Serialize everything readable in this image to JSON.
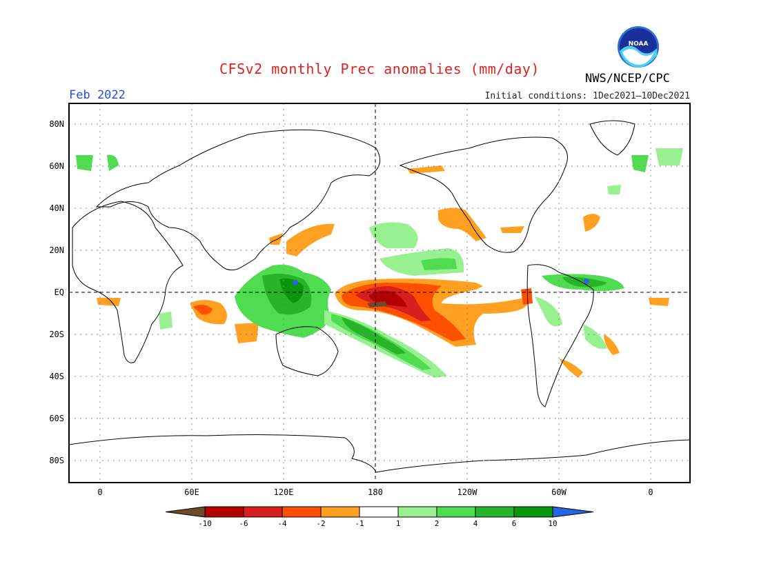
{
  "header": {
    "title": "CFSv2 monthly Prec anomalies (mm/day)",
    "month": "Feb 2022",
    "initial_conditions": "Initial conditions: 1Dec2021–10Dec2021",
    "agency": "NWS/NCEP/CPC",
    "logo_text": "NOAA"
  },
  "map": {
    "lat_labels": [
      "80N",
      "60N",
      "40N",
      "20N",
      "EQ",
      "20S",
      "40S",
      "60S",
      "80S"
    ],
    "lon_labels": [
      "0",
      "60E",
      "120E",
      "180",
      "120W",
      "60W",
      "0"
    ]
  },
  "legend": {
    "ticks": [
      "-10",
      "-6",
      "-4",
      "-2",
      "-1",
      "1",
      "2",
      "4",
      "6",
      "10"
    ],
    "colors": [
      "#6e4a2c",
      "#b40000",
      "#d81e1e",
      "#ff5000",
      "#ffa020",
      "#ffffff",
      "#98f090",
      "#50dc50",
      "#28b428",
      "#0a960a",
      "#2864e6"
    ]
  }
}
